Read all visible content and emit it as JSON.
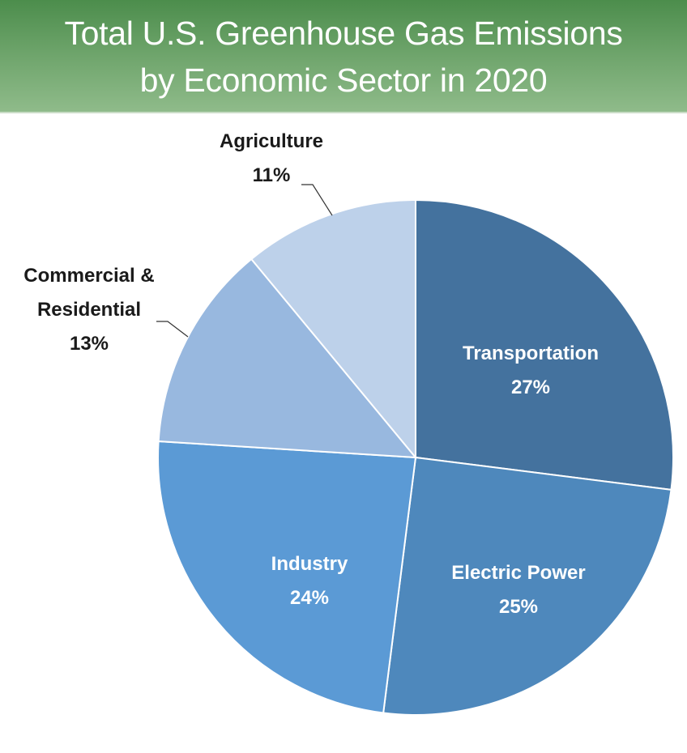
{
  "header": {
    "title_line1": "Total U.S. Greenhouse Gas Emissions",
    "title_line2": "by Economic Sector in 2020",
    "gradient_top": "#4c8d4c",
    "gradient_bottom": "#8fbb8a"
  },
  "labels": {
    "transportation": {
      "name": "Transportation",
      "pct": "27%"
    },
    "electric_power": {
      "name": "Electric Power",
      "pct": "25%"
    },
    "industry": {
      "name": "Industry",
      "pct": "24%"
    },
    "commercial_residential": {
      "name_line1": "Commercial &",
      "name_line2": "Residential",
      "pct": "13%"
    },
    "agriculture": {
      "name": "Agriculture",
      "pct": "11%"
    }
  },
  "chart_data": {
    "type": "pie",
    "title": "Total U.S. Greenhouse Gas Emissions by Economic Sector in 2020",
    "categories": [
      "Transportation",
      "Electric Power",
      "Industry",
      "Commercial & Residential",
      "Agriculture"
    ],
    "values": [
      27,
      25,
      24,
      13,
      11
    ],
    "unit": "%",
    "colors": [
      "#44729e",
      "#4e88bc",
      "#5b9ad5",
      "#98b8df",
      "#bdd1ea"
    ],
    "start_angle_deg": 0,
    "direction": "clockwise",
    "legend": "none (data labels on/next to slices)"
  }
}
